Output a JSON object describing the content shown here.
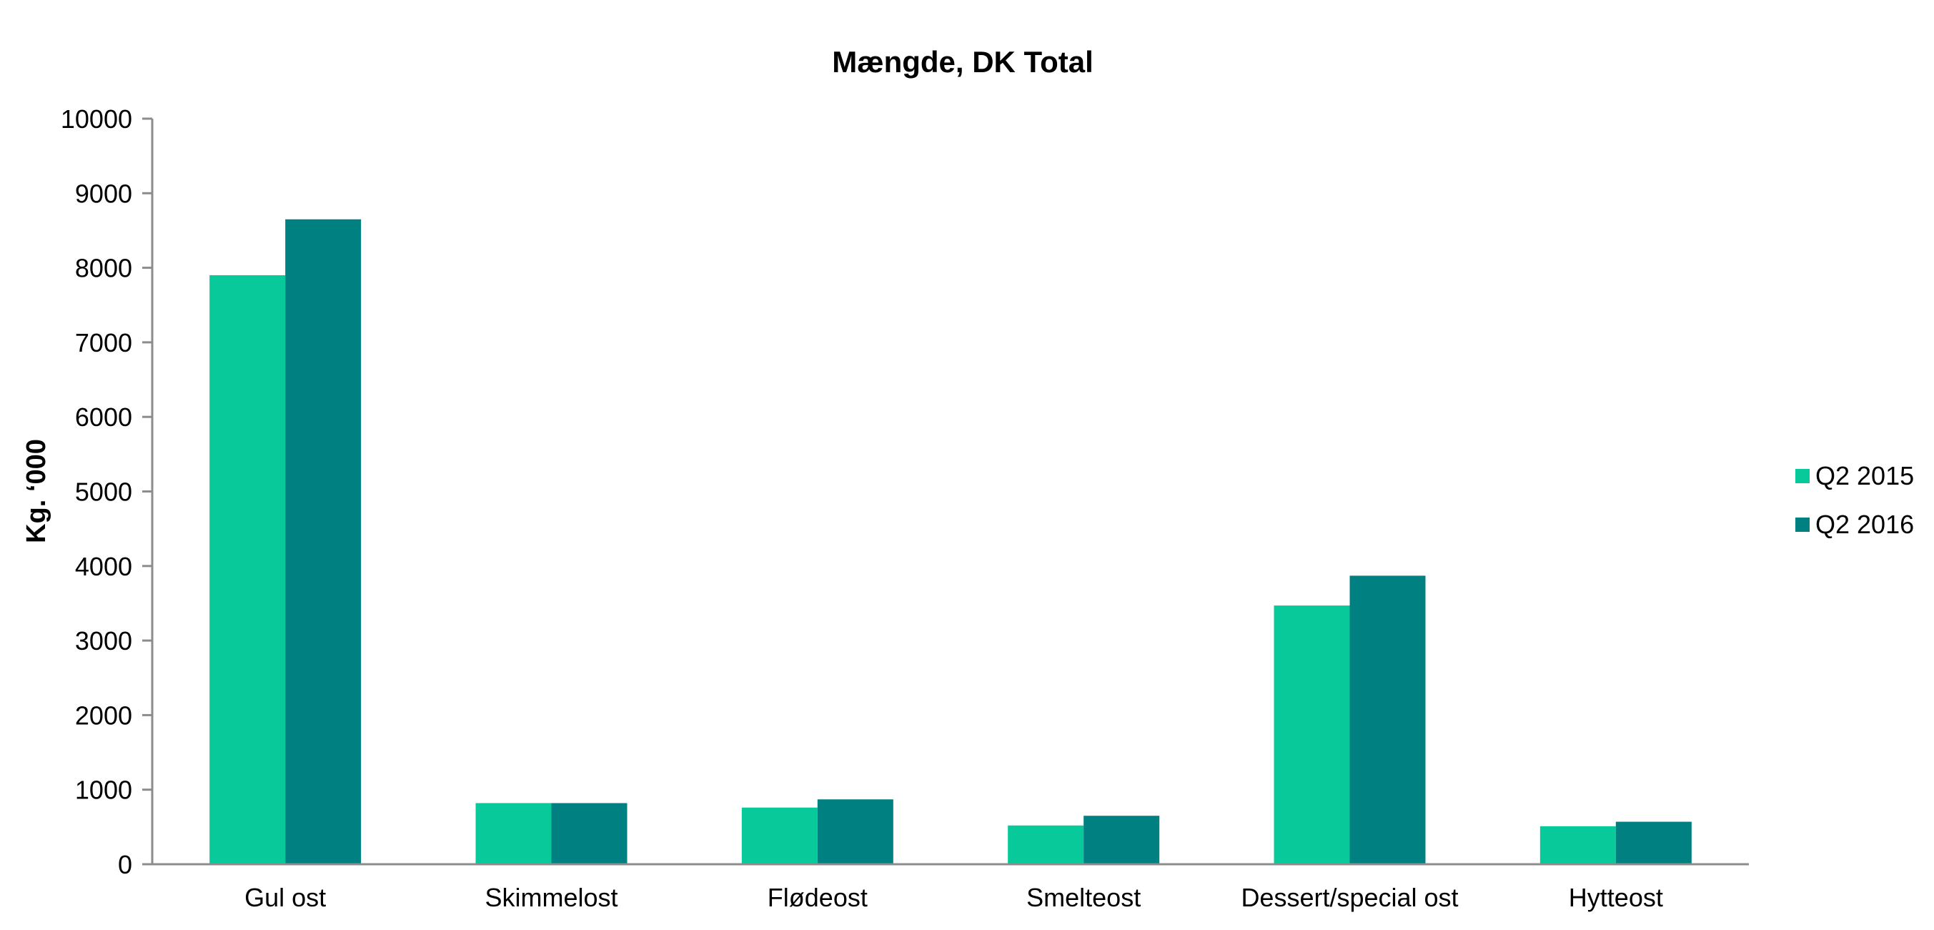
{
  "chart_data": {
    "type": "bar",
    "title": "Mængde, DK Total",
    "xlabel": "",
    "ylabel": "Kg. ‘000",
    "ylim": [
      0,
      10000
    ],
    "yticks": [
      0,
      1000,
      2000,
      3000,
      4000,
      5000,
      6000,
      7000,
      8000,
      9000,
      10000
    ],
    "categories": [
      "Gul ost",
      "Skimmelost",
      "Flødeost",
      "Smelteost",
      "Dessert/special ost",
      "Hytteost"
    ],
    "series": [
      {
        "name": "Q2 2015",
        "color": "#08c999",
        "values": [
          7900,
          820,
          760,
          520,
          3470,
          510
        ]
      },
      {
        "name": "Q2 2016",
        "color": "#008080",
        "values": [
          8650,
          820,
          870,
          650,
          3870,
          570
        ]
      }
    ],
    "grid": false,
    "legend": "right"
  }
}
